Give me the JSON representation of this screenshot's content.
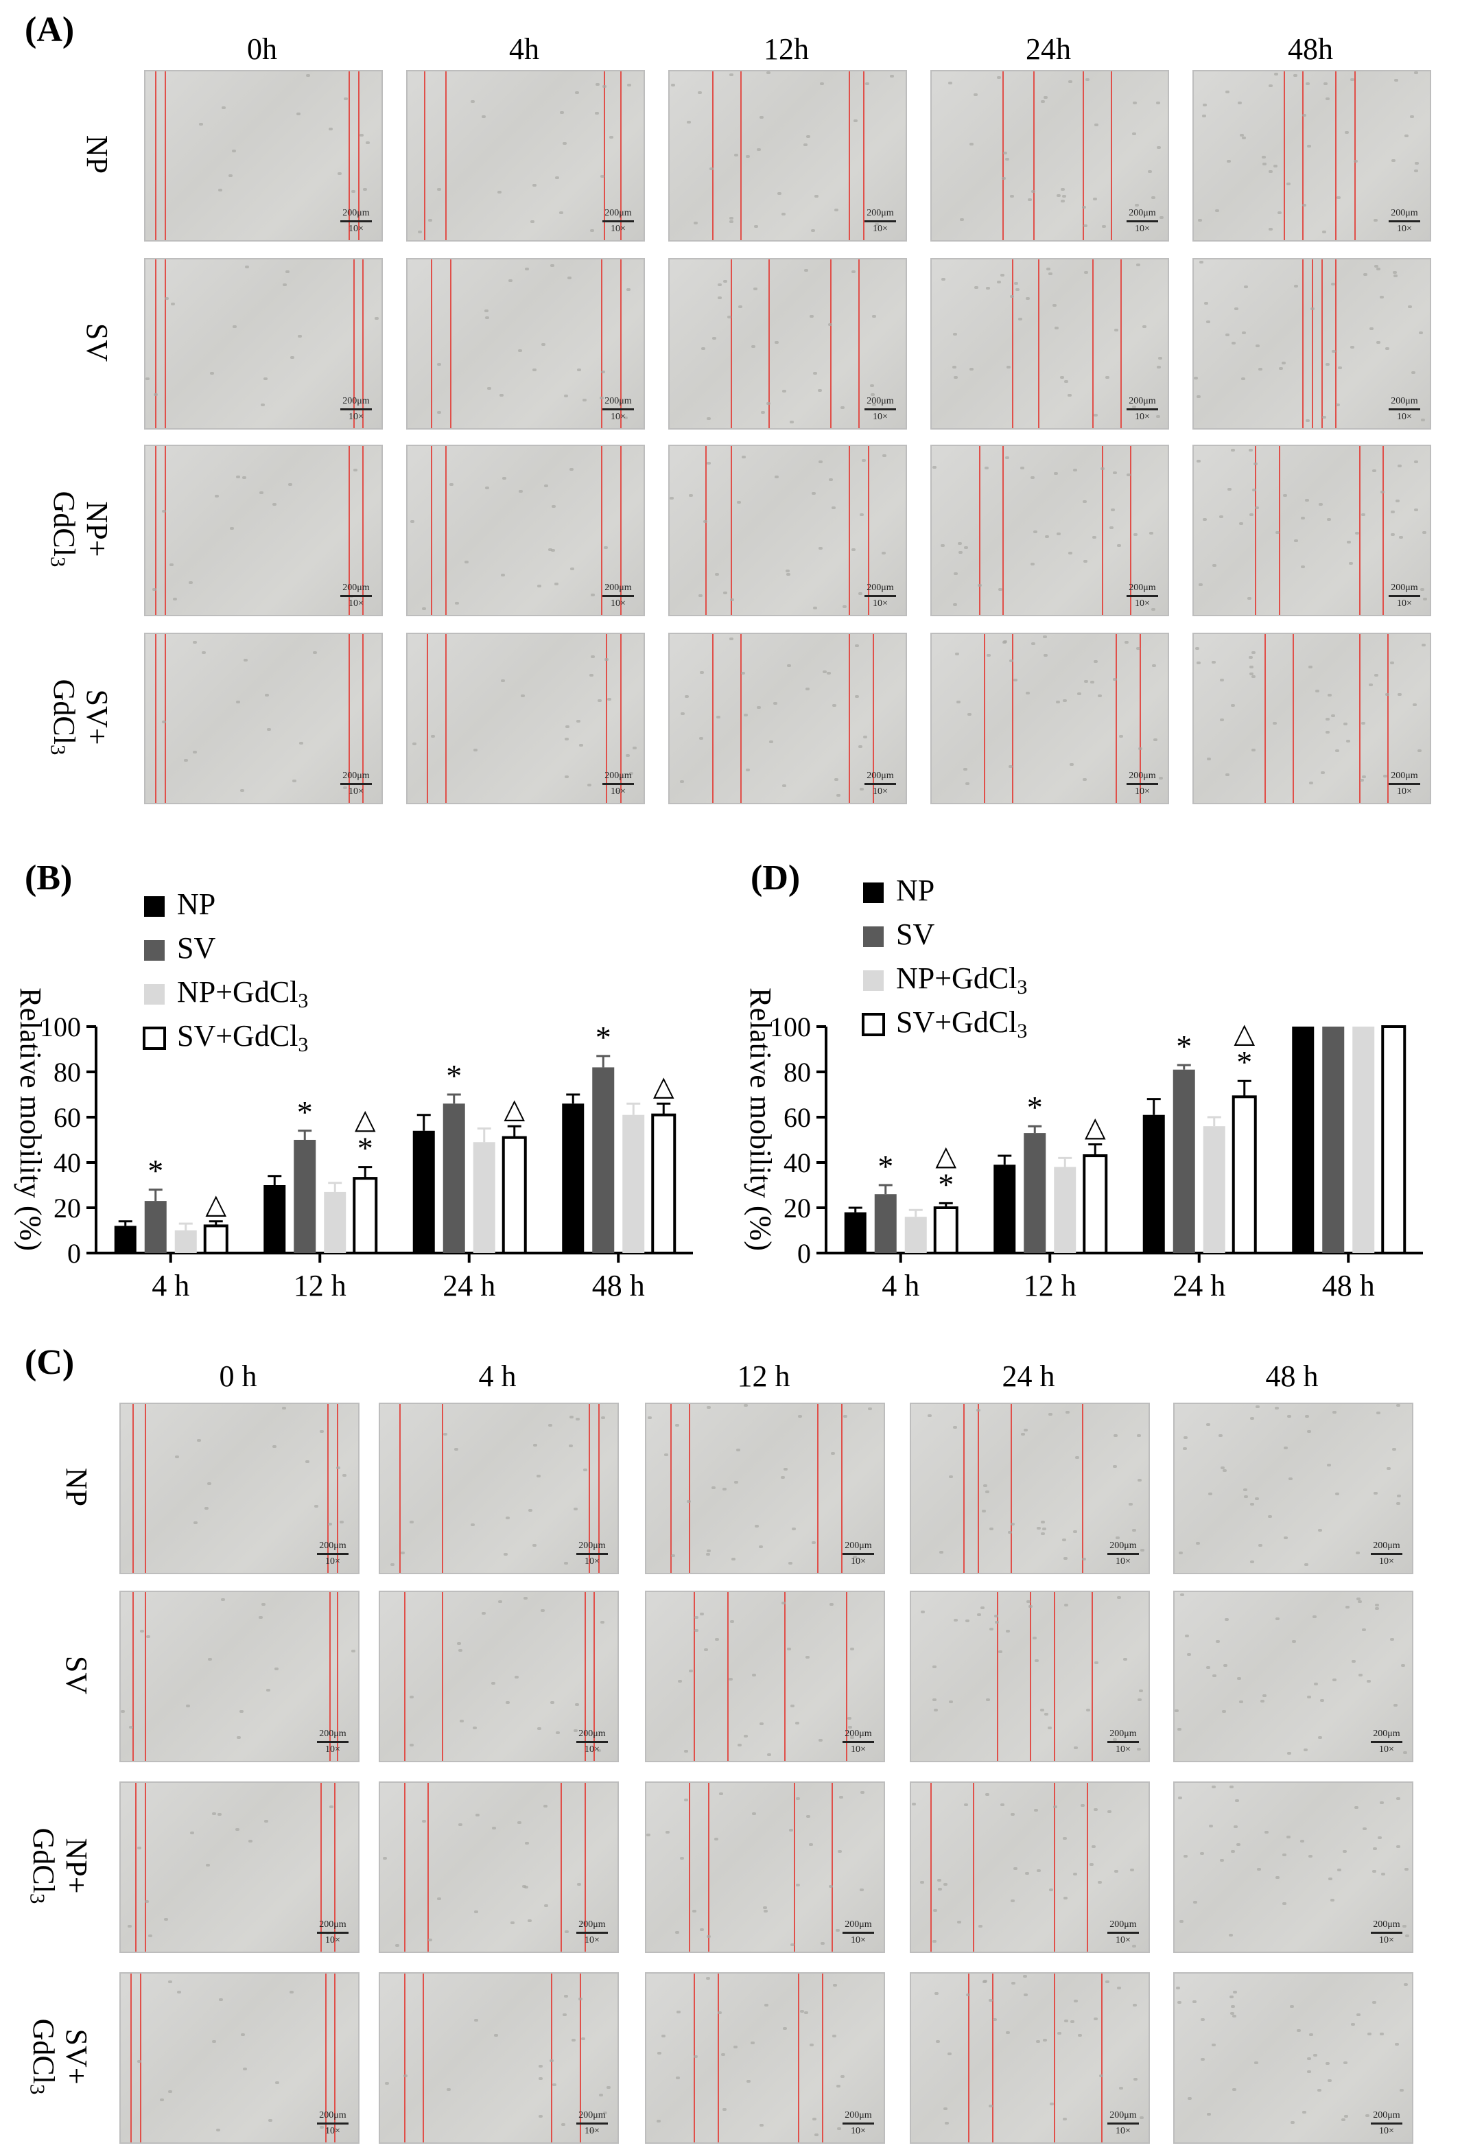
{
  "figure": {
    "panel_a": {
      "letter": "(A)",
      "columns": [
        "0h",
        "4h",
        "12h",
        "24h",
        "48h"
      ],
      "rows": [
        "NP",
        "SV",
        "NP+\nGdCl3",
        "SV+\nGdCl3"
      ],
      "scale_text": "200μm",
      "mag_text": "10×"
    },
    "panel_b": {
      "letter": "(B)"
    },
    "panel_c": {
      "letter": "(C)",
      "columns": [
        "0 h",
        "4 h",
        "12 h",
        "24 h",
        "48 h"
      ],
      "rows": [
        "NP",
        "SV",
        "NP+\nGdCl3",
        "SV+\nGdCl3"
      ],
      "scale_text": "200μm",
      "mag_text": "10×"
    },
    "panel_d": {
      "letter": "(D)"
    }
  },
  "chart_data": [
    {
      "panel": "B",
      "type": "bar",
      "categories": [
        "4 h",
        "12 h",
        "24 h",
        "48 h"
      ],
      "ylabel": "Relative mobility (%)",
      "ylim": [
        0,
        100
      ],
      "yticks": [
        0,
        20,
        40,
        60,
        80,
        100
      ],
      "legend_position": "top-left",
      "series": [
        {
          "name": "NP",
          "color": "#000000",
          "values": [
            12,
            30,
            54,
            66
          ],
          "errors": [
            2,
            4,
            7,
            4
          ],
          "markers": [
            "",
            "",
            "",
            ""
          ]
        },
        {
          "name": "SV",
          "color": "#5a5a5a",
          "values": [
            23,
            50,
            66,
            82
          ],
          "errors": [
            5,
            4,
            4,
            5
          ],
          "markers": [
            "*",
            "*",
            "*",
            "*"
          ]
        },
        {
          "name": "NP+GdCl3",
          "color": "#d9d9d9",
          "values": [
            10,
            27,
            49,
            61
          ],
          "errors": [
            3,
            4,
            6,
            5
          ],
          "markers": [
            "",
            "",
            "",
            ""
          ]
        },
        {
          "name": "SV+GdCl3",
          "color": "#ffffff",
          "values": [
            12,
            33,
            51,
            61
          ],
          "errors": [
            2,
            5,
            5,
            5
          ],
          "markers": [
            "△",
            "△\n*",
            "△",
            "△"
          ]
        }
      ]
    },
    {
      "panel": "D",
      "type": "bar",
      "categories": [
        "4 h",
        "12 h",
        "24 h",
        "48 h"
      ],
      "ylabel": "Relative mobility (%)",
      "ylim": [
        0,
        100
      ],
      "yticks": [
        0,
        20,
        40,
        60,
        80,
        100
      ],
      "legend_position": "top-left",
      "series": [
        {
          "name": "NP",
          "color": "#000000",
          "values": [
            18,
            39,
            61,
            100
          ],
          "errors": [
            2,
            4,
            7,
            0
          ],
          "markers": [
            "",
            "",
            "",
            ""
          ]
        },
        {
          "name": "SV",
          "color": "#5a5a5a",
          "values": [
            26,
            53,
            81,
            100
          ],
          "errors": [
            4,
            3,
            2,
            0
          ],
          "markers": [
            "*",
            "*",
            "*",
            ""
          ]
        },
        {
          "name": "NP+GdCl3",
          "color": "#d9d9d9",
          "values": [
            16,
            38,
            56,
            100
          ],
          "errors": [
            3,
            4,
            4,
            0
          ],
          "markers": [
            "",
            "",
            "",
            ""
          ]
        },
        {
          "name": "SV+GdCl3",
          "color": "#ffffff",
          "values": [
            20,
            43,
            69,
            100
          ],
          "errors": [
            2,
            5,
            7,
            0
          ],
          "markers": [
            "△\n*",
            "△",
            "△\n*",
            ""
          ]
        }
      ]
    }
  ]
}
